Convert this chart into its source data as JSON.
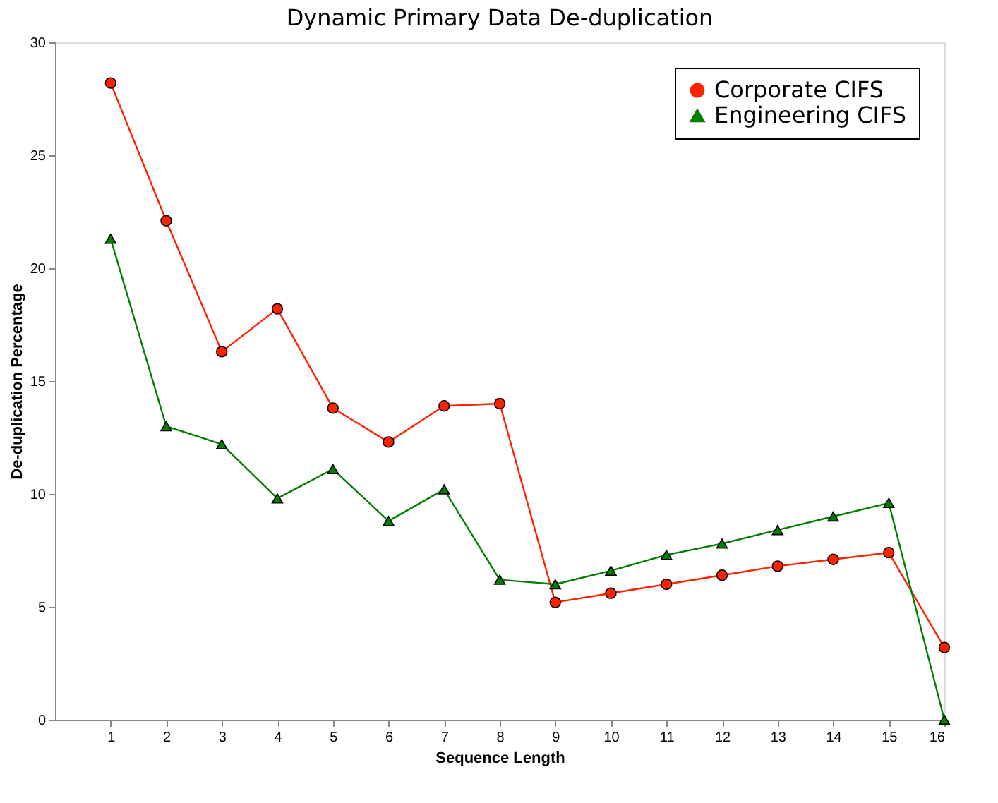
{
  "chart_data": {
    "type": "line",
    "title": "Dynamic Primary Data De-duplication",
    "xlabel": "Sequence Length",
    "ylabel": "De-duplication Percentage",
    "x": [
      1,
      2,
      3,
      4,
      5,
      6,
      7,
      8,
      9,
      10,
      11,
      12,
      13,
      14,
      15,
      16
    ],
    "series": [
      {
        "name": "Corporate CIFS",
        "color": "#ff2200",
        "marker": "circle",
        "values": [
          28.2,
          22.1,
          16.3,
          18.2,
          13.8,
          12.3,
          13.9,
          14.0,
          5.2,
          5.6,
          6.0,
          6.4,
          6.8,
          7.1,
          7.4,
          3.2
        ]
      },
      {
        "name": "Engineering CIFS",
        "color": "#008000",
        "marker": "triangle",
        "values": [
          21.3,
          13.0,
          12.2,
          9.8,
          11.1,
          8.8,
          10.2,
          6.2,
          6.0,
          6.6,
          7.3,
          7.8,
          8.4,
          9.0,
          9.6,
          0
        ]
      }
    ],
    "xlim": [
      0,
      16
    ],
    "xticks": [
      1,
      2,
      3,
      4,
      5,
      6,
      7,
      8,
      9,
      10,
      11,
      12,
      13,
      14,
      15,
      16
    ],
    "ylim": [
      0,
      30
    ],
    "yticks": [
      0,
      5,
      10,
      15,
      20,
      25,
      30
    ],
    "grid": false,
    "legend": "top right",
    "line_style": "solid"
  }
}
